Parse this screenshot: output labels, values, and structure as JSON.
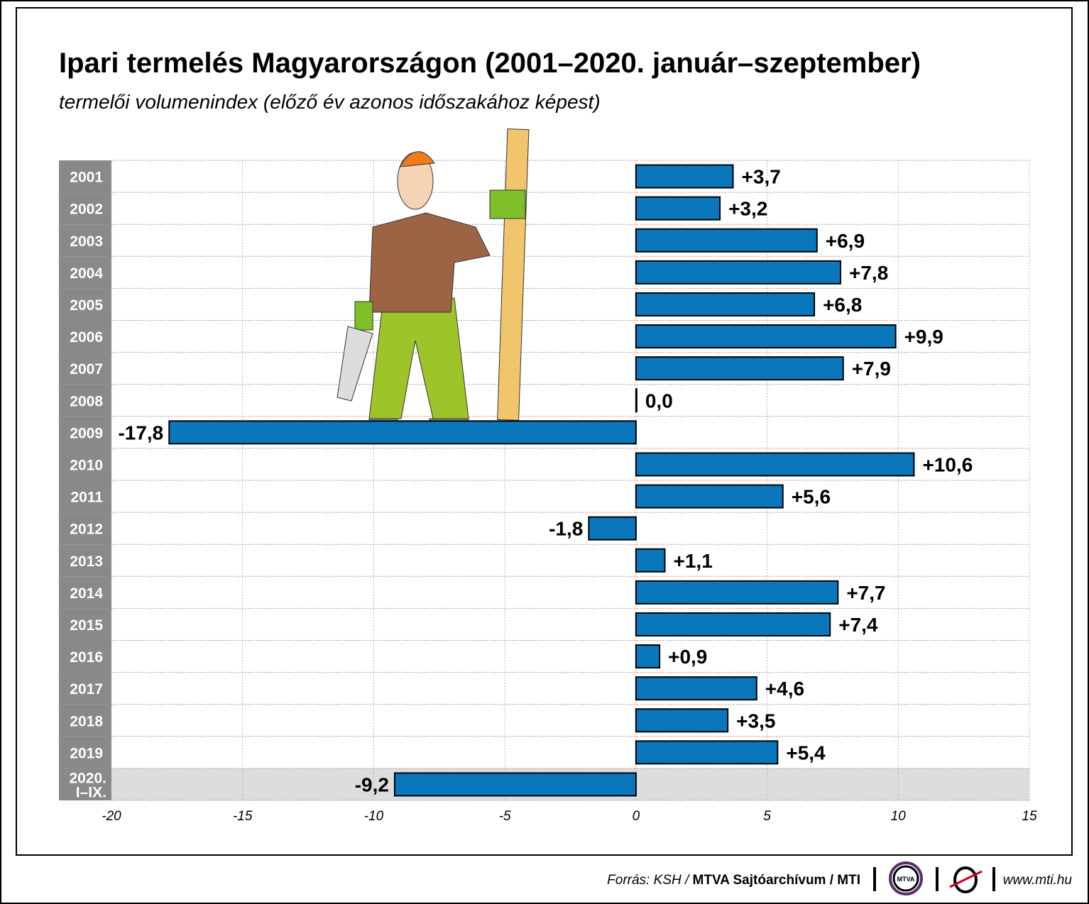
{
  "chart_data": {
    "type": "bar",
    "orientation": "horizontal",
    "title": "Ipari termelés Magyarországon (2001–2020. január–szeptember)",
    "subtitle": "termelői volumenindex (előző év azonos időszakához képest)",
    "categories": [
      "2001",
      "2002",
      "2003",
      "2004",
      "2005",
      "2006",
      "2007",
      "2008",
      "2009",
      "2010",
      "2011",
      "2012",
      "2013",
      "2014",
      "2015",
      "2016",
      "2017",
      "2018",
      "2019",
      "2020. I–IX."
    ],
    "values": [
      3.7,
      3.2,
      6.9,
      7.8,
      6.8,
      9.9,
      7.9,
      0.0,
      -17.8,
      10.6,
      5.6,
      -1.8,
      1.1,
      7.7,
      7.4,
      0.9,
      4.6,
      3.5,
      5.4,
      -9.2
    ],
    "data_labels": [
      "+3,7",
      "+3,2",
      "+6,9",
      "+7,8",
      "+6,8",
      "+9,9",
      "+7,9",
      "0,0",
      "-17,8",
      "+10,6",
      "+5,6",
      "-1,8",
      "+1,1",
      "+7,7",
      "+7,4",
      "+0,9",
      "+4,6",
      "+3,5",
      "+5,4",
      "-9,2"
    ],
    "xlim": [
      -20,
      15
    ],
    "xticks": [
      "-20",
      "-15",
      "-10",
      "-5",
      "0",
      "5",
      "10",
      "15"
    ],
    "xlabel": "",
    "ylabel": "",
    "grid": true,
    "highlighted_category": "2020. I–IX.",
    "colors": {
      "bar": "#0a77bd",
      "year_column": "#898989",
      "highlight_row": "#dcdddf"
    }
  },
  "footer": {
    "source_prefix": "Forrás: KSH / ",
    "source_bold": "MTVA Sajtóarchívum / MTI",
    "logo_mtva": "MTVA",
    "url": "www.mti.hu"
  }
}
